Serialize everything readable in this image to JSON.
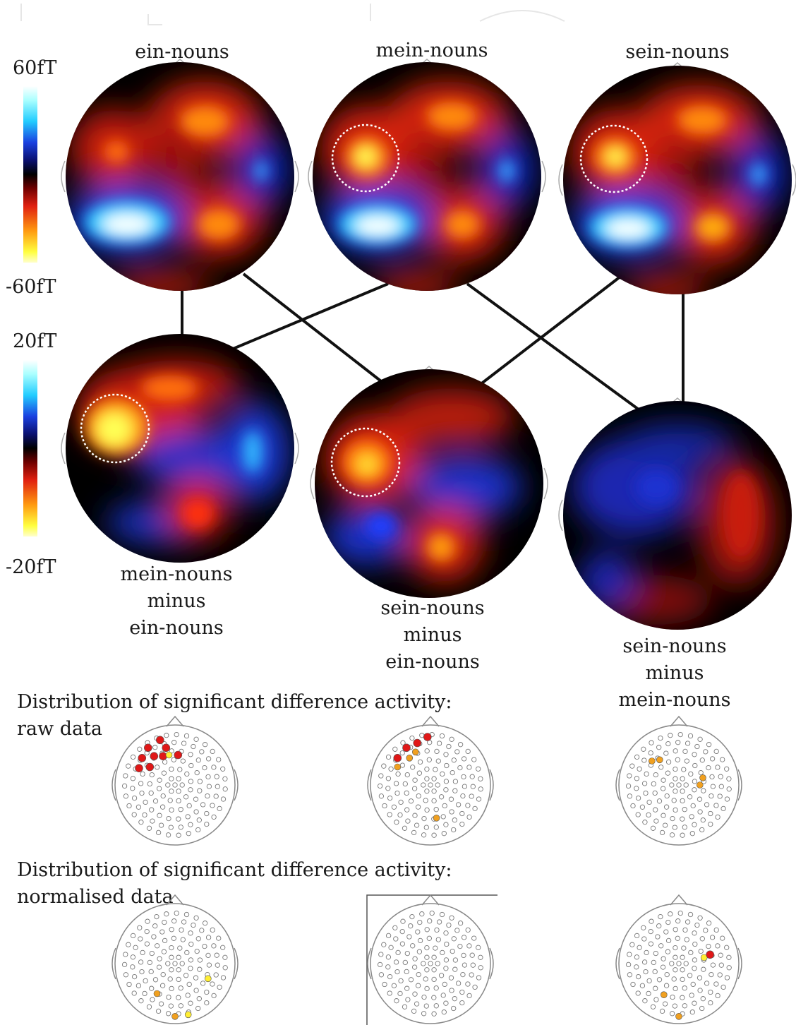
{
  "scales": {
    "raw": {
      "max_label": "60fT",
      "min_label": "-60fT"
    },
    "diff": {
      "max_label": "20fT",
      "min_label": "-20fT"
    }
  },
  "conditions": {
    "ein": "ein-nouns",
    "mein": "mein-nouns",
    "sein": "sein-nouns"
  },
  "differences": [
    {
      "line1": "mein-nouns",
      "line2": "minus",
      "line3": "ein-nouns"
    },
    {
      "line1": "sein-nouns",
      "line2": "minus",
      "line3": "ein-nouns"
    },
    {
      "line1": "sein-nouns",
      "line2": "minus",
      "line3": "mein-nouns"
    }
  ],
  "sections": {
    "raw": {
      "line1": "Distribution of significant difference activity:",
      "line2": "raw data"
    },
    "norm": {
      "line1": "Distribution of significant difference activity:",
      "line2": "normalised data"
    }
  },
  "colors": {
    "positive_peak": "#ffff66",
    "positive": "#e8321a",
    "zero": "#000000",
    "negative": "#1a2ec8",
    "negative_peak": "#e8ffff",
    "sig_red": "#e01818",
    "sig_orange": "#f0a020",
    "sig_yellow": "#ffee33"
  }
}
